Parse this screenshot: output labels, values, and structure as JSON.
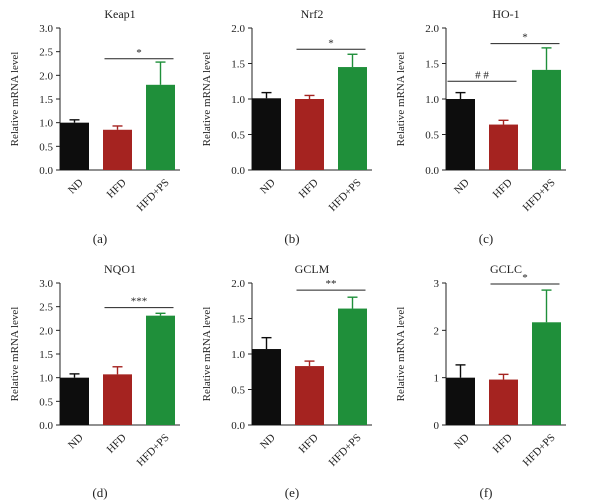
{
  "colors": {
    "ND": "#0d0d0d",
    "HFD": "#a52320",
    "HFD+PS": "#1f8f3a",
    "axis": "#222222"
  },
  "chart_data": [
    {
      "type": "bar",
      "panel_label": "(a)",
      "title": "Keap1",
      "ylabel": "Relative mRNA level",
      "categories": [
        "ND",
        "HFD",
        "HFD+PS"
      ],
      "values": [
        1.0,
        0.85,
        1.8
      ],
      "errors": [
        0.06,
        0.08,
        0.48
      ],
      "ylim": [
        0,
        3.0
      ],
      "yticks": [
        "0.0",
        "0.5",
        "1.0",
        "1.5",
        "2.0",
        "2.5",
        "3.0"
      ],
      "significance": [
        {
          "from": 1,
          "to": 2,
          "y": 2.35,
          "label": "*"
        }
      ]
    },
    {
      "type": "bar",
      "panel_label": "(b)",
      "title": "Nrf2",
      "ylabel": "Relative mRNA level",
      "categories": [
        "ND",
        "HFD",
        "HFD+PS"
      ],
      "values": [
        1.01,
        1.0,
        1.45
      ],
      "errors": [
        0.08,
        0.05,
        0.18
      ],
      "ylim": [
        0,
        2.0
      ],
      "yticks": [
        "0.0",
        "0.5",
        "1.0",
        "1.5",
        "2.0"
      ],
      "significance": [
        {
          "from": 1,
          "to": 2,
          "y": 1.7,
          "label": "*"
        }
      ]
    },
    {
      "type": "bar",
      "panel_label": "(c)",
      "title": "HO-1",
      "ylabel": "Relative mRNA level",
      "categories": [
        "ND",
        "HFD",
        "HFD+PS"
      ],
      "values": [
        1.0,
        0.64,
        1.41
      ],
      "errors": [
        0.09,
        0.06,
        0.31
      ],
      "ylim": [
        0,
        2.0
      ],
      "yticks": [
        "0.0",
        "0.5",
        "1.0",
        "1.5",
        "2.0"
      ],
      "significance": [
        {
          "from": 0,
          "to": 1,
          "y": 1.25,
          "label": "# #"
        },
        {
          "from": 1,
          "to": 2,
          "y": 1.78,
          "label": "*"
        }
      ]
    },
    {
      "type": "bar",
      "panel_label": "(d)",
      "title": "NQO1",
      "ylabel": "Relative mRNA level",
      "categories": [
        "ND",
        "HFD",
        "HFD+PS"
      ],
      "values": [
        1.0,
        1.07,
        2.31
      ],
      "errors": [
        0.08,
        0.16,
        0.05
      ],
      "ylim": [
        0,
        3.0
      ],
      "yticks": [
        "0.0",
        "0.5",
        "1.0",
        "1.5",
        "2.0",
        "2.5",
        "3.0"
      ],
      "significance": [
        {
          "from": 1,
          "to": 2,
          "y": 2.48,
          "label": "***"
        }
      ]
    },
    {
      "type": "bar",
      "panel_label": "(e)",
      "title": "GCLM",
      "ylabel": "Relative mRNA level",
      "categories": [
        "ND",
        "HFD",
        "HFD+PS"
      ],
      "values": [
        1.07,
        0.83,
        1.64
      ],
      "errors": [
        0.16,
        0.07,
        0.16
      ],
      "ylim": [
        0,
        2.0
      ],
      "yticks": [
        "0.0",
        "0.5",
        "1.0",
        "1.5",
        "2.0"
      ],
      "significance": [
        {
          "from": 1,
          "to": 2,
          "y": 1.9,
          "label": "**"
        }
      ]
    },
    {
      "type": "bar",
      "panel_label": "(f)",
      "title": "GCLC",
      "ylabel": "Relative mRNA level",
      "categories": [
        "ND",
        "HFD",
        "HFD+PS"
      ],
      "values": [
        1.0,
        0.96,
        2.17
      ],
      "errors": [
        0.27,
        0.11,
        0.68
      ],
      "ylim": [
        0,
        3
      ],
      "yticks": [
        "0",
        "1",
        "2",
        "3"
      ],
      "significance": [
        {
          "from": 1,
          "to": 2,
          "y": 2.98,
          "label": "*"
        }
      ]
    }
  ]
}
